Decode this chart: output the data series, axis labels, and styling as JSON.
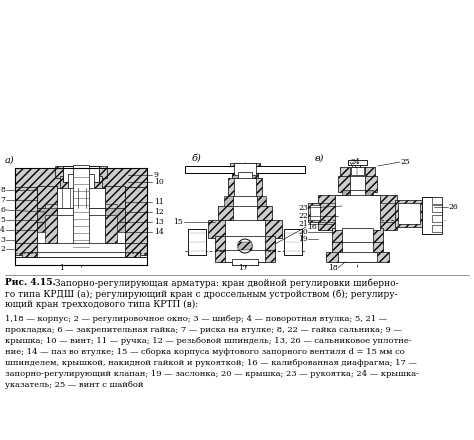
{
  "bg_color": "#ffffff",
  "caption_line1": "Рис. 4.15. Запорно-регулирующая арматура: кран двойной регулировки шиберно-",
  "caption_line2": "го типа КРДШ (а); регулирующий кран с дроссельным устройством (б); регулиру-",
  "caption_line3": "ющий кран трехходового типа КРТП (в):",
  "detail_line1": "1,18 — корпус; 2 — регулировочное окно; 3 — шибер; 4 — поворотная втулка; 5, 21 —",
  "detail_line2": "прокладка; 6 — закрепительная гайка; 7 — риска на втулке; 8, 22 — гайка сальника; 9 —",
  "detail_line3": "крышка; 10 — винт; 11 — ручка; 12 — резьбовой шпиндель; 13, 26 — сальниковое уплотне-",
  "detail_line4": "ние; 14 — паз во втулке; 15 — сборка корпуса муфтового запорного вентиля d = 15 мм со",
  "detail_line5": "шпинделем, крышкой, накидной гайкой и рукояткой; 16 — калиброванная диафрагма; 17 —",
  "detail_line6": "запорно-регулирующий клапан; 19 — заслонка; 20 — крышка; 23 — рукоятка; 24 — крышка-",
  "detail_line7": "указатель; 25 — винт с шайбой",
  "figsize": [
    4.74,
    4.4
  ],
  "dpi": 100
}
